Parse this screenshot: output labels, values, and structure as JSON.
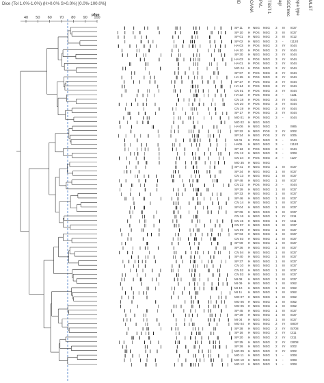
{
  "caption": {
    "dice": "Dice (Tol 1.0%-1.0%) (H>0.0% S>0.0%) [0.0%-100.0%]",
    "pfge": "pfge"
  },
  "scale": {
    "ticks": [
      "40",
      "50",
      "60",
      "70",
      "80",
      "90",
      "100"
    ]
  },
  "column_headers": [
    "ID",
    "CA/NA",
    "PVL",
    "TSST-1",
    "agr",
    "SCCmec",
    "spa type",
    "MLST"
  ],
  "rows": [
    {
      "id": "SP 11",
      "cama": "H",
      "pvl": "NEG",
      "tsst": "NEG",
      "agr": "3",
      "scc": "III",
      "spa": "t037"
    },
    {
      "id": "SP 10",
      "cama": "H",
      "pvl": "POS",
      "tsst": "NEG",
      "agr": "3",
      "scc": "III",
      "spa": "t037"
    },
    {
      "id": "SP 01",
      "cama": "H",
      "pvl": "NEG",
      "tsst": "NEG",
      "agr": "3",
      "scc": "III",
      "spa": "t012"
    },
    {
      "id": "SP 02",
      "cama": "H",
      "pvl": "NEG",
      "tsst": "NEG",
      "agr": "3",
      "scc": "-",
      "spa": "t1120"
    },
    {
      "id": "HA 03",
      "cama": "H",
      "pvl": "POS",
      "tsst": "NEG",
      "agr": "3",
      "scc": "IV",
      "spa": "t044"
    },
    {
      "id": "HA 10",
      "cama": "H",
      "pvl": "POS",
      "tsst": "NEG",
      "agr": "3",
      "scc": "IV",
      "spa": "t044"
    },
    {
      "id": "SP 30",
      "cama": "H",
      "pvl": "NEG",
      "tsst": "NEG",
      "agr": "3",
      "scc": "IV",
      "spa": "t044"
    },
    {
      "id": "HA 03",
      "cama": "H",
      "pvl": "POS",
      "tsst": "NEG",
      "agr": "3",
      "scc": "IV",
      "spa": "t044"
    },
    {
      "id": "HA 01",
      "cama": "H",
      "pvl": "POS",
      "tsst": "NEG",
      "agr": "3",
      "scc": "IV",
      "spa": "t044"
    },
    {
      "id": "MO 24",
      "cama": "H",
      "pvl": "POS",
      "tsst": "NEG",
      "agr": "3",
      "scc": "IV",
      "spa": "t044"
    },
    {
      "id": "SP 07",
      "cama": "H",
      "pvl": "POS",
      "tsst": "NEG",
      "agr": "3",
      "scc": "IV",
      "spa": "t044"
    },
    {
      "id": "HA 15",
      "cama": "H",
      "pvl": "POS",
      "tsst": "NEG",
      "agr": "3",
      "scc": "IV",
      "spa": "t044"
    },
    {
      "id": "SP 27",
      "cama": "H",
      "pvl": "POS",
      "tsst": "NEG",
      "agr": "3",
      "scc": "IV",
      "spa": "t044"
    },
    {
      "id": "HA 14",
      "cama": "H",
      "pvl": "POS",
      "tsst": "NEG",
      "agr": "3",
      "scc": "IV",
      "spa": "t044"
    },
    {
      "id": "CN 01",
      "cama": "H",
      "pvl": "POS",
      "tsst": "NEG",
      "agr": "3",
      "scc": "IV",
      "spa": "t044"
    },
    {
      "id": "HA 22",
      "cama": "H",
      "pvl": "POS",
      "tsst": "NEG",
      "agr": "3",
      "scc": "-",
      "spa": "t131"
    },
    {
      "id": "CN 18",
      "cama": "H",
      "pvl": "POS",
      "tsst": "NEG",
      "agr": "3",
      "scc": "IV",
      "spa": "t044"
    },
    {
      "id": "CN 20",
      "cama": "H",
      "pvl": "POS",
      "tsst": "NEG",
      "agr": "3",
      "scc": "IV",
      "spa": "t044"
    },
    {
      "id": "CN 19",
      "cama": "H",
      "pvl": "POS",
      "tsst": "NEG",
      "agr": "3",
      "scc": "IV",
      "spa": "t044"
    },
    {
      "id": "SP 17",
      "cama": "H",
      "pvl": "POS",
      "tsst": "NEG",
      "agr": "3",
      "scc": "IV",
      "spa": "t044"
    },
    {
      "id": "MO 01",
      "cama": "H",
      "pvl": "POS",
      "tsst": "NEG",
      "agr": "3",
      "scc": "-",
      "spa": "t044"
    },
    {
      "id": "MO 02",
      "cama": "H",
      "pvl": "NEG",
      "tsst": "NEG",
      "agr": "",
      "scc": "",
      "spa": ""
    },
    {
      "id": "HA 06",
      "cama": "H",
      "pvl": "NEG",
      "tsst": "NEG",
      "agr": "1",
      "scc": "",
      "spa": "t985"
    },
    {
      "id": "SP 22",
      "cama": "H",
      "pvl": "NEG",
      "tsst": "POS",
      "agr": "2",
      "scc": "IV",
      "spa": "t002"
    },
    {
      "id": "SP 24",
      "cama": "H",
      "pvl": "NEG",
      "tsst": "POS",
      "agr": "2",
      "scc": "IV",
      "spa": "t005"
    },
    {
      "id": "MI 01",
      "cama": "H",
      "pvl": "POS",
      "tsst": "NEG",
      "agr": "3",
      "scc": "-",
      "spa": "t044"
    },
    {
      "id": "HA05",
      "cama": "H",
      "pvl": "NEG",
      "tsst": "NEG",
      "agr": "3",
      "scc": "-",
      "spa": "t1120"
    },
    {
      "id": "SP 13",
      "cama": "H",
      "pvl": "POS",
      "tsst": "NEG",
      "agr": "3",
      "scc": "-",
      "spa": "t044"
    },
    {
      "id": "CN 12",
      "cama": "H",
      "pvl": "NEG",
      "tsst": "NEG",
      "agr": "3",
      "scc": "-",
      "spa": "t008"
    },
    {
      "id": "CN 34",
      "cama": "H",
      "pvl": "POS",
      "tsst": "NEG",
      "agr": "3",
      "scc": "-",
      "spa": "t127"
    },
    {
      "id": "MO 35",
      "cama": "H",
      "pvl": "NEG",
      "tsst": "NEG",
      "agr": "",
      "scc": "",
      "spa": ""
    },
    {
      "id": "SP 41",
      "cama": "H",
      "pvl": "NEG",
      "tsst": "NEG",
      "agr": "1",
      "scc": "III",
      "spa": "t037"
    },
    {
      "id": "SP 34",
      "cama": "H",
      "pvl": "NEG",
      "tsst": "NEG",
      "agr": "1",
      "scc": "III",
      "spa": "t037"
    },
    {
      "id": "CN 13",
      "cama": "H",
      "pvl": "NEG",
      "tsst": "NEG",
      "agr": "1",
      "scc": "III",
      "spa": "t037"
    },
    {
      "id": "SP 48",
      "cama": "H",
      "pvl": "NEG",
      "tsst": "NEG",
      "agr": "1",
      "scc": "III",
      "spa": "t037"
    },
    {
      "id": "CN 22",
      "cama": "H",
      "pvl": "POS",
      "tsst": "NEG",
      "agr": "3",
      "scc": "-",
      "spa": "t044"
    },
    {
      "id": "SP 29",
      "cama": "H",
      "pvl": "NEG",
      "tsst": "NEG",
      "agr": "1",
      "scc": "III",
      "spa": "t037"
    },
    {
      "id": "SP 33",
      "cama": "H",
      "pvl": "NEG",
      "tsst": "NEG",
      "agr": "1",
      "scc": "III",
      "spa": "t037"
    },
    {
      "id": "SP 46",
      "cama": "H",
      "pvl": "NEG",
      "tsst": "NEG",
      "agr": "1",
      "scc": "III",
      "spa": "t037"
    },
    {
      "id": "CN 14",
      "cama": "H",
      "pvl": "NEG",
      "tsst": "NEG",
      "agr": "1",
      "scc": "III",
      "spa": "t037"
    },
    {
      "id": "SP 04",
      "cama": "H",
      "pvl": "NEG",
      "tsst": "NEG",
      "agr": "1",
      "scc": "III",
      "spa": "t037"
    },
    {
      "id": "SP 06",
      "cama": "H",
      "pvl": "NEG",
      "tsst": "NEG",
      "agr": "1",
      "scc": "III",
      "spa": "t037"
    },
    {
      "id": "CN 16",
      "cama": "H",
      "pvl": "NEG",
      "tsst": "NEG",
      "agr": "1",
      "scc": "IV",
      "spa": "t311"
    },
    {
      "id": "CN 15",
      "cama": "H",
      "pvl": "NEG",
      "tsst": "NEG",
      "agr": "1",
      "scc": "IV",
      "spa": "t311"
    },
    {
      "id": "CN 07",
      "cama": "H",
      "pvl": "NEG",
      "tsst": "NEG",
      "agr": "1",
      "scc": "III",
      "spa": "t037"
    },
    {
      "id": "CN 09",
      "cama": "H",
      "pvl": "NEG",
      "tsst": "NEG",
      "agr": "1",
      "scc": "III",
      "spa": "t037"
    },
    {
      "id": "SP 03",
      "cama": "H",
      "pvl": "NEG",
      "tsst": "NEG",
      "agr": "1",
      "scc": "III",
      "spa": "t037"
    },
    {
      "id": "CN 03",
      "cama": "H",
      "pvl": "NEG",
      "tsst": "NEG",
      "agr": "1",
      "scc": "III",
      "spa": "t037"
    },
    {
      "id": "SP 09",
      "cama": "H",
      "pvl": "NEG",
      "tsst": "NEG",
      "agr": "1",
      "scc": "III",
      "spa": "t037"
    },
    {
      "id": "SP 36",
      "cama": "H",
      "pvl": "NEG",
      "tsst": "NEG",
      "agr": "1",
      "scc": "III",
      "spa": "t037"
    },
    {
      "id": "CN 04",
      "cama": "H",
      "pvl": "NEG",
      "tsst": "NEG",
      "agr": "1",
      "scc": "III",
      "spa": "t037"
    },
    {
      "id": "SP 40",
      "cama": "H",
      "pvl": "NEG",
      "tsst": "NEG",
      "agr": "1",
      "scc": "III",
      "spa": "t037"
    },
    {
      "id": "SP 37",
      "cama": "H",
      "pvl": "NEG",
      "tsst": "NEG",
      "agr": "1",
      "scc": "III",
      "spa": "t037"
    },
    {
      "id": "CN 10",
      "cama": "H",
      "pvl": "NEG",
      "tsst": "NEG",
      "agr": "1",
      "scc": "III",
      "spa": "t037"
    },
    {
      "id": "CN 02",
      "cama": "H",
      "pvl": "NEG",
      "tsst": "NEG",
      "agr": "1",
      "scc": "III",
      "spa": "t037"
    },
    {
      "id": "CN 03",
      "cama": "H",
      "pvl": "NEG",
      "tsst": "NEG",
      "agr": "1",
      "scc": "III",
      "spa": "t037"
    },
    {
      "id": "MI 08",
      "cama": "H",
      "pvl": "NEG",
      "tsst": "NEG",
      "agr": "1",
      "scc": "III",
      "spa": "t037"
    },
    {
      "id": "MI 09",
      "cama": "H",
      "pvl": "NEG",
      "tsst": "NEG",
      "agr": "1",
      "scc": "III",
      "spa": "t062"
    },
    {
      "id": "MI 10",
      "cama": "H",
      "pvl": "NEG",
      "tsst": "NEG",
      "agr": "1",
      "scc": "III",
      "spa": "t062"
    },
    {
      "id": "MI 11",
      "cama": "H",
      "pvl": "NEG",
      "tsst": "NEG",
      "agr": "1",
      "scc": "III",
      "spa": "t062"
    },
    {
      "id": "MO 07",
      "cama": "H",
      "pvl": "NEG",
      "tsst": "NEG",
      "agr": "1",
      "scc": "III",
      "spa": "t062"
    },
    {
      "id": "MO 06",
      "cama": "H",
      "pvl": "NEG",
      "tsst": "NEG",
      "agr": "1",
      "scc": "III",
      "spa": "t062"
    },
    {
      "id": "MO 05",
      "cama": "H",
      "pvl": "NEG",
      "tsst": "NEG",
      "agr": "1",
      "scc": "III",
      "spa": "t062"
    },
    {
      "id": "SP 45",
      "cama": "H",
      "pvl": "NEG",
      "tsst": "NEG",
      "agr": "1",
      "scc": "III",
      "spa": "t037"
    },
    {
      "id": "SP 39",
      "cama": "H",
      "pvl": "NEG",
      "tsst": "NEG",
      "agr": "1",
      "scc": "III",
      "spa": "t037"
    },
    {
      "id": "MI 04",
      "cama": "H",
      "pvl": "NEG",
      "tsst": "NEG",
      "agr": "1",
      "scc": "III",
      "spa": "t037"
    },
    {
      "id": "MO 04",
      "cama": "H",
      "pvl": "NEG",
      "tsst": "NEG",
      "agr": "2",
      "scc": "IV",
      "spa": "t8007"
    },
    {
      "id": "SP 38",
      "cama": "H",
      "pvl": "NEG",
      "tsst": "NEG",
      "agr": "2",
      "scc": "IV",
      "spa": "t5708"
    },
    {
      "id": "SP 16",
      "cama": "H",
      "pvl": "NEG",
      "tsst": "NEG",
      "agr": "2",
      "scc": "IV",
      "spa": "t311"
    },
    {
      "id": "SP 20",
      "cama": "H",
      "pvl": "NEG",
      "tsst": "NEG",
      "agr": "2",
      "scc": "IV",
      "spa": "t311"
    },
    {
      "id": "SP 25",
      "cama": "H",
      "pvl": "NEG",
      "tsst": "NEG",
      "agr": "2",
      "scc": "IV",
      "spa": "t3008"
    },
    {
      "id": "SP 26",
      "cama": "H",
      "pvl": "NEG",
      "tsst": "NEG",
      "agr": "2",
      "scc": "IV",
      "spa": "t002"
    },
    {
      "id": "MO 09",
      "cama": "H",
      "pvl": "NEG",
      "tsst": "NEG",
      "agr": "2",
      "scc": "IV",
      "spa": "t002"
    },
    {
      "id": "MO 11",
      "cama": "H",
      "pvl": "NEG",
      "tsst": "NEG",
      "agr": "1",
      "scc": "-",
      "spa": "t008"
    },
    {
      "id": "MO 10",
      "cama": "H",
      "pvl": "NEG",
      "tsst": "NEG",
      "agr": "1",
      "scc": "-",
      "spa": "t008"
    },
    {
      "id": "MO 12",
      "cama": "H",
      "pvl": "NEG",
      "tsst": "NEG",
      "agr": "1",
      "scc": "-",
      "spa": "t008"
    }
  ]
}
